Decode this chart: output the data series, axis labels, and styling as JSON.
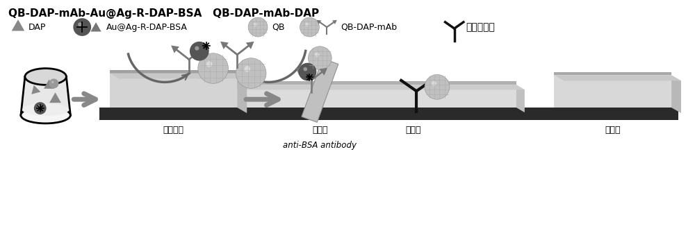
{
  "title_text": "QB-DAP-mAb-Au@Ag-R-DAP-BSA   QB-DAP-mAb-DAP",
  "bg_color": "#ffffff",
  "legend_labels": [
    "DAP",
    "Au@Ag-R-DAP-BSA",
    "QB",
    "QB-DAP-mAb",
    "羊抗鼠二抗"
  ],
  "strip_labels": [
    "玻璃纤维",
    "检测区",
    "质控区",
    "吸水纸"
  ],
  "antibody_label": "anti-BSA antibody",
  "figsize": [
    10.0,
    3.33
  ],
  "dpi": 100
}
